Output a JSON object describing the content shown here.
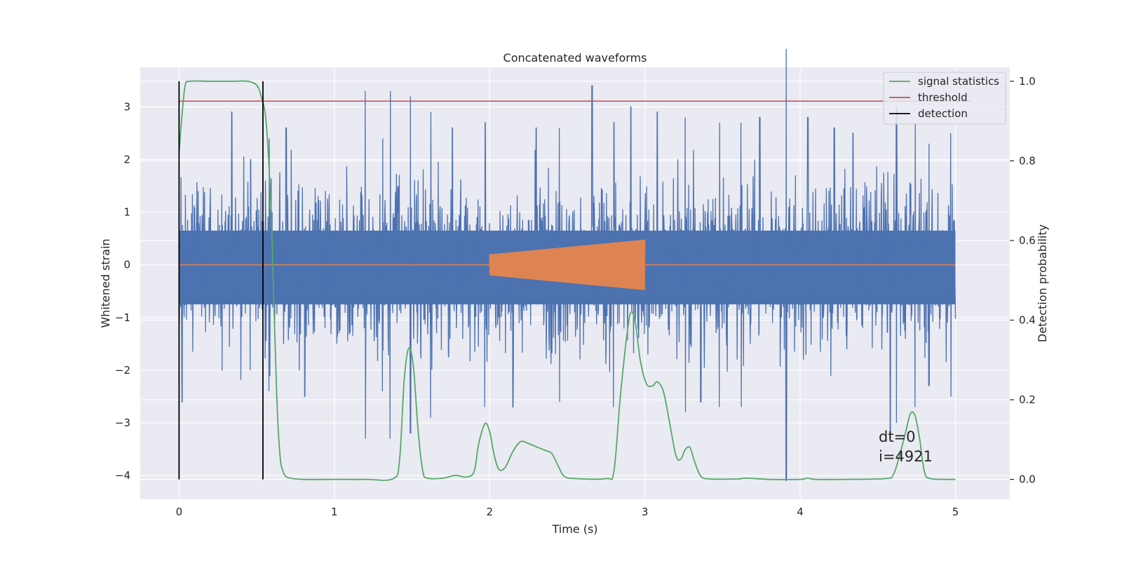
{
  "chart_data": {
    "type": "line",
    "title": "Concatenated waveforms",
    "xlabel": "Time (s)",
    "ylabel": "Whitened strain",
    "y2label": "Detection probability",
    "xlim": [
      -0.25,
      5.35
    ],
    "ylim": [
      -4.45,
      3.75
    ],
    "y2lim": [
      -0.05,
      1.035
    ],
    "x_ticks": [
      0,
      1,
      2,
      3,
      4,
      5
    ],
    "y_ticks": [
      -4,
      -3,
      -2,
      -1,
      0,
      1,
      2,
      3
    ],
    "y2_ticks": [
      0.0,
      0.2,
      0.4,
      0.6,
      0.8,
      1.0
    ],
    "grid": true,
    "legend_position": "top-right",
    "colors": {
      "strain": "#4c72b0",
      "template": "#dd8452",
      "signal_statistics": "#55a868",
      "threshold": "#c44e52",
      "detection": "#000000",
      "background": "#eaeaf2",
      "grid": "#ffffff"
    },
    "series": [
      {
        "name": "signal statistics",
        "axis": "right",
        "points": [
          [
            0.0,
            0.82
          ],
          [
            0.02,
            0.92
          ],
          [
            0.04,
            0.99
          ],
          [
            0.07,
            1.0
          ],
          [
            0.2,
            1.0
          ],
          [
            0.35,
            1.0
          ],
          [
            0.44,
            1.0
          ],
          [
            0.5,
            0.99
          ],
          [
            0.53,
            0.96
          ],
          [
            0.56,
            0.9
          ],
          [
            0.59,
            0.7
          ],
          [
            0.61,
            0.45
          ],
          [
            0.63,
            0.2
          ],
          [
            0.65,
            0.06
          ],
          [
            0.67,
            0.02
          ],
          [
            0.7,
            0.005
          ],
          [
            0.8,
            0.0
          ],
          [
            1.0,
            0.0
          ],
          [
            1.2,
            0.0
          ],
          [
            1.38,
            0.002
          ],
          [
            1.42,
            0.05
          ],
          [
            1.45,
            0.25
          ],
          [
            1.48,
            0.33
          ],
          [
            1.51,
            0.28
          ],
          [
            1.54,
            0.12
          ],
          [
            1.57,
            0.02
          ],
          [
            1.6,
            0.003
          ],
          [
            1.7,
            0.003
          ],
          [
            1.78,
            0.01
          ],
          [
            1.85,
            0.006
          ],
          [
            1.9,
            0.02
          ],
          [
            1.93,
            0.09
          ],
          [
            1.97,
            0.14
          ],
          [
            2.0,
            0.12
          ],
          [
            2.03,
            0.06
          ],
          [
            2.06,
            0.025
          ],
          [
            2.1,
            0.03
          ],
          [
            2.15,
            0.07
          ],
          [
            2.2,
            0.095
          ],
          [
            2.25,
            0.09
          ],
          [
            2.3,
            0.082
          ],
          [
            2.35,
            0.074
          ],
          [
            2.4,
            0.065
          ],
          [
            2.44,
            0.035
          ],
          [
            2.48,
            0.008
          ],
          [
            2.55,
            0.002
          ],
          [
            2.75,
            0.002
          ],
          [
            2.8,
            0.02
          ],
          [
            2.84,
            0.2
          ],
          [
            2.88,
            0.35
          ],
          [
            2.91,
            0.42
          ],
          [
            2.94,
            0.39
          ],
          [
            2.97,
            0.3
          ],
          [
            3.01,
            0.24
          ],
          [
            3.05,
            0.235
          ],
          [
            3.08,
            0.245
          ],
          [
            3.12,
            0.22
          ],
          [
            3.16,
            0.14
          ],
          [
            3.2,
            0.06
          ],
          [
            3.23,
            0.05
          ],
          [
            3.26,
            0.075
          ],
          [
            3.29,
            0.08
          ],
          [
            3.32,
            0.045
          ],
          [
            3.36,
            0.008
          ],
          [
            3.42,
            0.001
          ],
          [
            3.6,
            0.001
          ],
          [
            3.65,
            0.003
          ],
          [
            3.8,
            0.0
          ],
          [
            4.0,
            0.0
          ],
          [
            4.05,
            0.003
          ],
          [
            4.1,
            0.0
          ],
          [
            4.3,
            0.0
          ],
          [
            4.55,
            0.002
          ],
          [
            4.6,
            0.012
          ],
          [
            4.64,
            0.06
          ],
          [
            4.68,
            0.12
          ],
          [
            4.71,
            0.165
          ],
          [
            4.74,
            0.16
          ],
          [
            4.77,
            0.1
          ],
          [
            4.8,
            0.02
          ],
          [
            4.84,
            0.002
          ],
          [
            5.0,
            0.0
          ]
        ]
      },
      {
        "name": "threshold",
        "axis": "right",
        "points": [
          [
            0.0,
            0.95
          ],
          [
            5.1,
            0.95
          ]
        ]
      },
      {
        "name": "detection",
        "axis": "right",
        "segments": [
          [
            [
              0.0,
              0.0
            ],
            [
              0.0,
              1.0
            ]
          ],
          [
            [
              0.54,
              0.0
            ],
            [
              0.54,
              1.0
            ]
          ]
        ]
      },
      {
        "axis": "left",
        "kind": "noise",
        "x_range": [
          0.0,
          5.0
        ],
        "envelope": [
          -1.9,
          1.9
        ],
        "spikes": [
          [
            0.02,
            -2.6
          ],
          [
            0.34,
            2.9
          ],
          [
            0.46,
            2.0
          ],
          [
            0.58,
            -2.4
          ],
          [
            0.69,
            2.6
          ],
          [
            0.81,
            -2.5
          ],
          [
            1.2,
            3.3
          ],
          [
            1.31,
            -2.4
          ],
          [
            1.36,
            -3.3
          ],
          [
            1.49,
            3.2
          ],
          [
            1.62,
            2.9
          ],
          [
            1.76,
            2.6
          ],
          [
            1.97,
            2.7
          ],
          [
            2.15,
            -2.7
          ],
          [
            2.3,
            2.6
          ],
          [
            2.45,
            -2.6
          ],
          [
            2.66,
            3.4
          ],
          [
            2.8,
            2.7
          ],
          [
            2.91,
            3.0
          ],
          [
            3.08,
            2.9
          ],
          [
            3.26,
            2.8
          ],
          [
            3.36,
            -2.6
          ],
          [
            3.48,
            2.7
          ],
          [
            3.62,
            -2.7
          ],
          [
            3.74,
            2.8
          ],
          [
            3.91,
            -4.1
          ],
          [
            4.05,
            2.8
          ],
          [
            4.22,
            2.6
          ],
          [
            4.34,
            2.5
          ],
          [
            4.58,
            -3.3
          ],
          [
            4.62,
            3.0
          ],
          [
            4.74,
            2.7
          ],
          [
            4.83,
            -2.3
          ],
          [
            4.97,
            -2.5
          ]
        ]
      },
      {
        "axis": "left",
        "kind": "chirp",
        "x_range": [
          2.0,
          3.0
        ],
        "amplitude_start": 0.2,
        "amplitude_end": 0.48,
        "baseline_range": [
          0.0,
          5.0
        ]
      }
    ],
    "annotations": [
      "dt=0",
      "i=4921"
    ]
  }
}
